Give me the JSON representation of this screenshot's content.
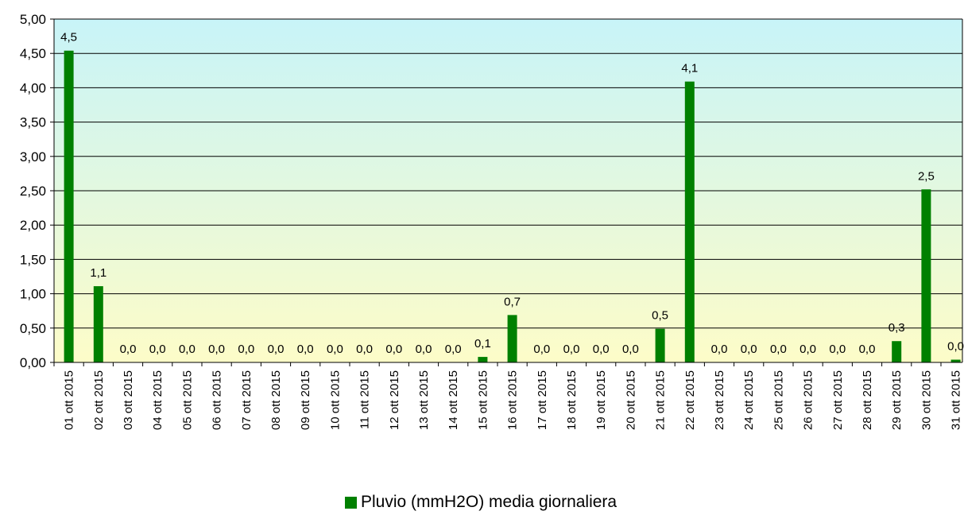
{
  "chart_data": {
    "type": "bar",
    "categories": [
      "01 ott 2015",
      "02 ott 2015",
      "03 ott 2015",
      "04 ott 2015",
      "05 ott 2015",
      "06 ott 2015",
      "07 ott 2015",
      "08 ott 2015",
      "09 ott 2015",
      "10 ott 2015",
      "11 ott 2015",
      "12 ott 2015",
      "13 ott 2015",
      "14 ott 2015",
      "15 ott 2015",
      "16 ott 2015",
      "17 ott 2015",
      "18 ott 2015",
      "19 ott 2015",
      "20 ott 2015",
      "21 ott 2015",
      "22 ott 2015",
      "23 ott 2015",
      "24 ott 2015",
      "25 ott 2015",
      "26 ott 2015",
      "27 ott 2015",
      "28 ott 2015",
      "29 ott 2015",
      "30 ott 2015",
      "31 ott 2015"
    ],
    "series": [
      {
        "name": "Pluvio (mmH2O) media giornaliera",
        "values": [
          4.54,
          1.11,
          0,
          0,
          0,
          0,
          0,
          0,
          0,
          0,
          0,
          0,
          0,
          0,
          0.08,
          0.69,
          0,
          0,
          0,
          0,
          0.49,
          4.09,
          0,
          0,
          0,
          0,
          0,
          0,
          0.31,
          2.52,
          0.04
        ],
        "data_labels": [
          "4,5",
          "1,1",
          "0,0",
          "0,0",
          "0,0",
          "0,0",
          "0,0",
          "0,0",
          "0,0",
          "0,0",
          "0,0",
          "0,0",
          "0,0",
          "0,0",
          "0,1",
          "0,7",
          "0,0",
          "0,0",
          "0,0",
          "0,0",
          "0,5",
          "4,1",
          "0,0",
          "0,0",
          "0,0",
          "0,0",
          "0,0",
          "0,0",
          "0,3",
          "2,5",
          "0,0"
        ],
        "color": "#008000"
      }
    ],
    "yticks": [
      "0,00",
      "0,50",
      "1,00",
      "1,50",
      "2,00",
      "2,50",
      "3,00",
      "3,50",
      "4,00",
      "4,50",
      "5,00"
    ],
    "ylim": [
      0,
      5
    ],
    "grid": true,
    "legend_position": "bottom",
    "background_gradient": [
      "#c8f4f8",
      "#fdfcc8"
    ],
    "title": "",
    "xlabel": "",
    "ylabel": ""
  }
}
